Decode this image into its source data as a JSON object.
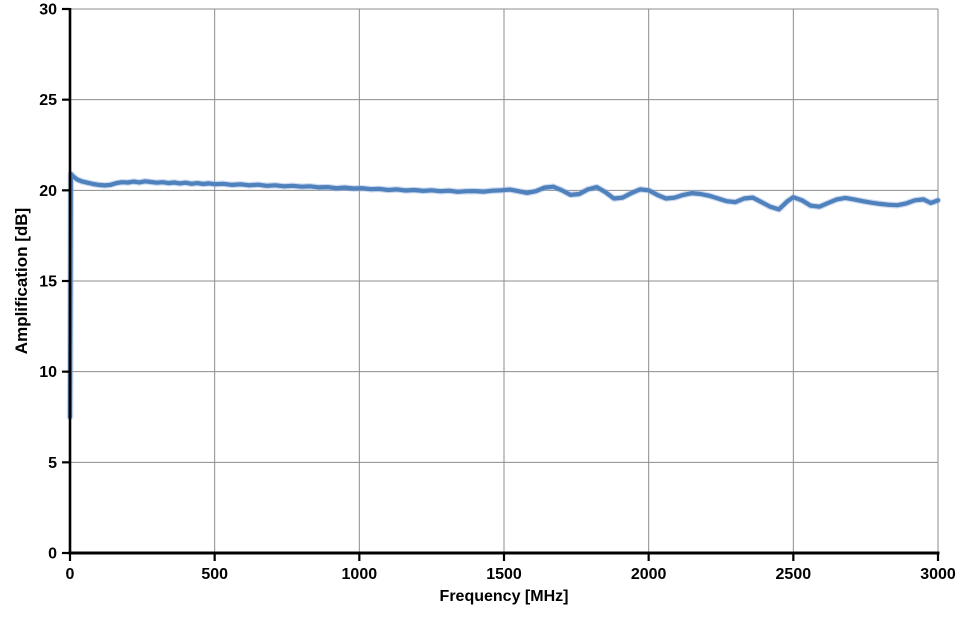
{
  "chart_data": {
    "type": "line",
    "title": "",
    "xlabel": "Frequency [MHz]",
    "ylabel": "Amplification [dB]",
    "xlim": [
      0,
      3000
    ],
    "ylim": [
      0,
      30
    ],
    "x_ticks": [
      0,
      500,
      1000,
      1500,
      2000,
      2500,
      3000
    ],
    "y_ticks": [
      0,
      5,
      10,
      15,
      20,
      25,
      30
    ],
    "grid": true,
    "legend": false,
    "colors": {
      "line": "#4F81BD",
      "line_halo": "#8FAEDC",
      "grid": "#8C8C8C",
      "axis": "#000000",
      "text": "#000000",
      "background": "#FFFFFF"
    },
    "series": [
      {
        "name": "Amplification",
        "x": [
          0,
          3,
          12,
          25,
          40,
          60,
          80,
          100,
          120,
          140,
          160,
          180,
          200,
          220,
          240,
          260,
          280,
          300,
          320,
          340,
          360,
          380,
          400,
          420,
          440,
          460,
          480,
          500,
          530,
          560,
          590,
          620,
          650,
          680,
          710,
          740,
          770,
          800,
          830,
          860,
          890,
          920,
          950,
          980,
          1010,
          1040,
          1070,
          1100,
          1130,
          1160,
          1190,
          1220,
          1250,
          1280,
          1310,
          1340,
          1370,
          1400,
          1430,
          1460,
          1490,
          1520,
          1550,
          1580,
          1610,
          1640,
          1670,
          1700,
          1730,
          1760,
          1790,
          1820,
          1850,
          1880,
          1910,
          1940,
          1970,
          2000,
          2030,
          2060,
          2090,
          2120,
          2150,
          2180,
          2210,
          2240,
          2270,
          2300,
          2330,
          2360,
          2390,
          2420,
          2450,
          2480,
          2500,
          2530,
          2560,
          2590,
          2620,
          2650,
          2680,
          2710,
          2740,
          2770,
          2800,
          2830,
          2860,
          2890,
          2920,
          2950,
          2975,
          3000
        ],
        "y": [
          7.5,
          20.9,
          20.75,
          20.6,
          20.5,
          20.42,
          20.35,
          20.3,
          20.27,
          20.3,
          20.4,
          20.45,
          20.43,
          20.48,
          20.44,
          20.5,
          20.46,
          20.42,
          20.45,
          20.4,
          20.43,
          20.38,
          20.42,
          20.36,
          20.4,
          20.35,
          20.38,
          20.34,
          20.36,
          20.3,
          20.33,
          20.28,
          20.31,
          20.25,
          20.28,
          20.22,
          20.25,
          20.2,
          20.22,
          20.16,
          20.18,
          20.12,
          20.15,
          20.1,
          20.12,
          20.06,
          20.08,
          20.02,
          20.05,
          19.99,
          20.02,
          19.97,
          20.0,
          19.95,
          19.98,
          19.92,
          19.95,
          19.96,
          19.93,
          19.98,
          20.0,
          20.04,
          19.95,
          19.86,
          19.95,
          20.15,
          20.2,
          20.0,
          19.75,
          19.8,
          20.05,
          20.18,
          19.9,
          19.55,
          19.6,
          19.85,
          20.05,
          20.0,
          19.75,
          19.55,
          19.6,
          19.75,
          19.85,
          19.8,
          19.7,
          19.55,
          19.4,
          19.35,
          19.55,
          19.6,
          19.35,
          19.1,
          18.95,
          19.4,
          19.62,
          19.45,
          19.15,
          19.1,
          19.3,
          19.5,
          19.58,
          19.5,
          19.4,
          19.32,
          19.25,
          19.2,
          19.18,
          19.28,
          19.45,
          19.5,
          19.3,
          19.45
        ]
      }
    ]
  }
}
